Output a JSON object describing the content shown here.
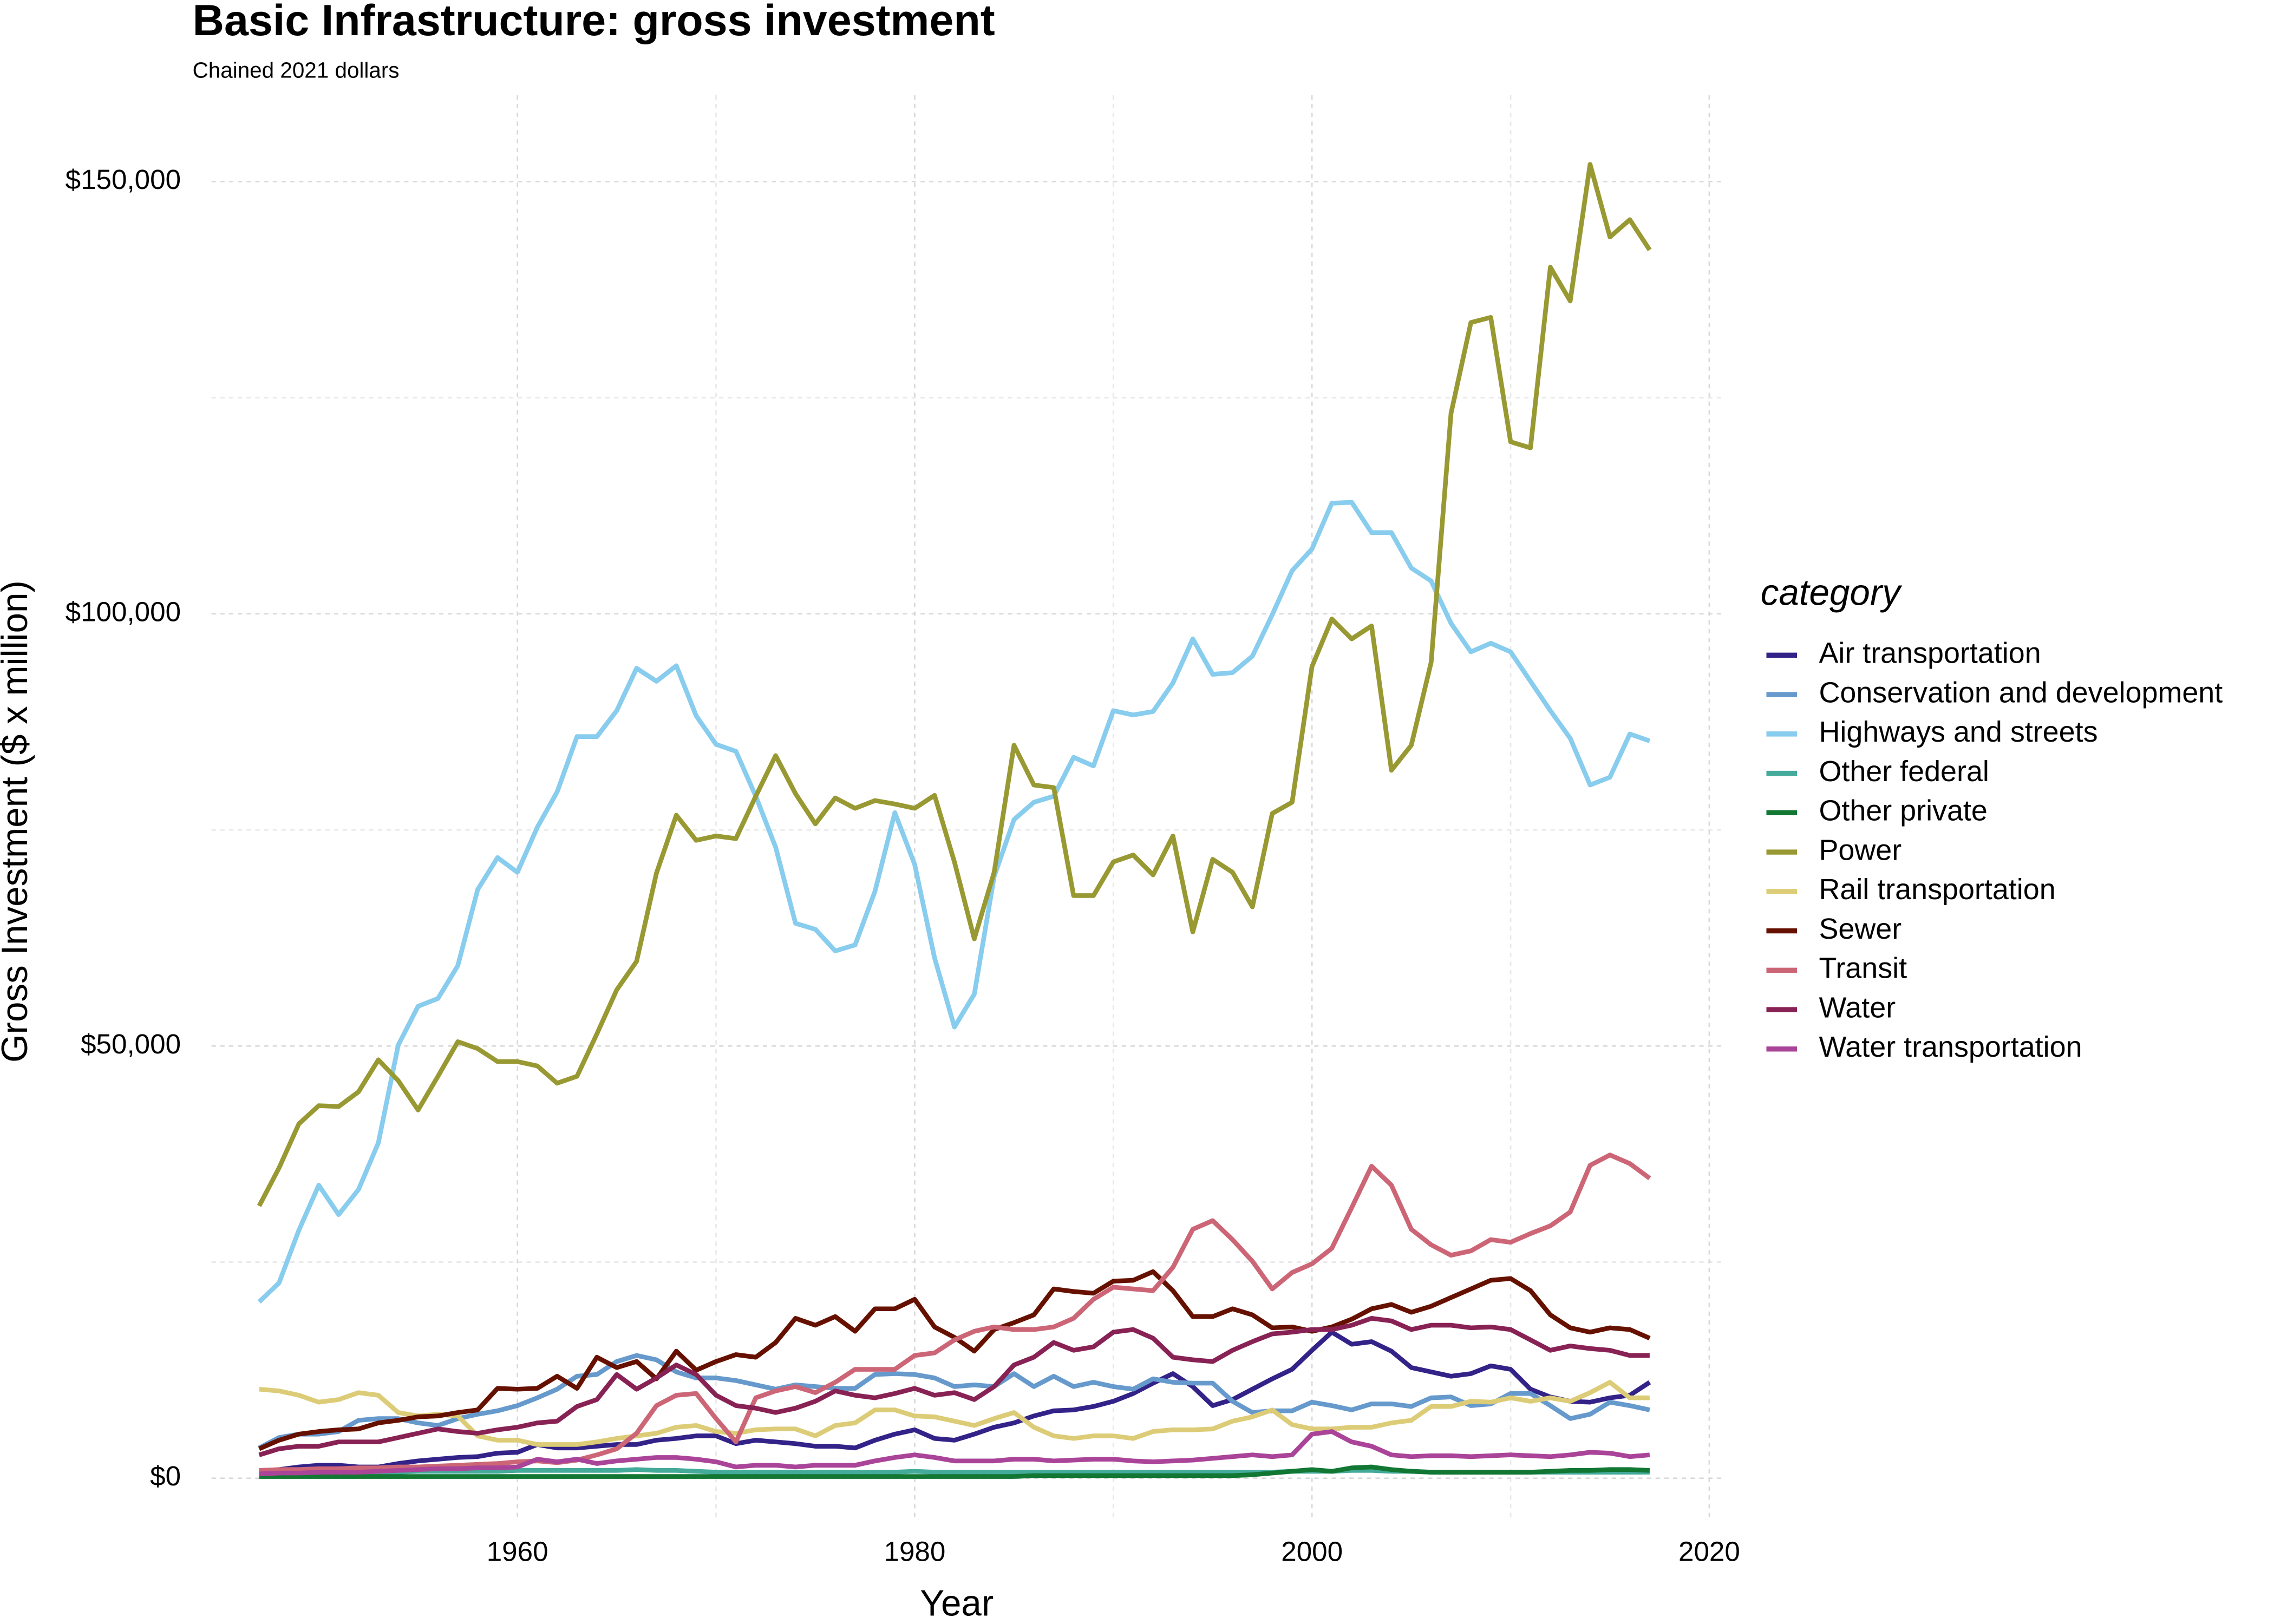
{
  "chart_data": {
    "type": "line",
    "title": "Basic Infrastructure: gross investment",
    "subtitle": "Chained 2021 dollars",
    "x_label": "Year",
    "y_label": "Gross Investment ($ x million)",
    "legend_title": "category",
    "legend_position": "right",
    "grid": true,
    "minor_grid": true,
    "xlim": [
      1944.6,
      2020.6
    ],
    "ylim": [
      -4500,
      160000
    ],
    "xticks": [
      1960,
      1980,
      2000,
      2020
    ],
    "yticks": [
      {
        "value": 0,
        "label": "$0"
      },
      {
        "value": 50000,
        "label": "$50,000"
      },
      {
        "value": 100000,
        "label": "$100,000"
      },
      {
        "value": 150000,
        "label": "$150,000"
      }
    ],
    "x": [
      1947,
      1948,
      1949,
      1950,
      1951,
      1952,
      1953,
      1954,
      1955,
      1956,
      1957,
      1958,
      1959,
      1960,
      1961,
      1962,
      1963,
      1964,
      1965,
      1966,
      1967,
      1968,
      1969,
      1970,
      1971,
      1972,
      1973,
      1974,
      1975,
      1976,
      1977,
      1978,
      1979,
      1980,
      1981,
      1982,
      1983,
      1984,
      1985,
      1986,
      1987,
      1988,
      1989,
      1990,
      1991,
      1992,
      1993,
      1994,
      1995,
      1996,
      1997,
      1998,
      1999,
      2000,
      2001,
      2002,
      2003,
      2004,
      2005,
      2006,
      2007,
      2008,
      2009,
      2010,
      2011,
      2012,
      2013,
      2014,
      2015,
      2016,
      2017
    ],
    "series": [
      {
        "name": "Air transportation",
        "color": "#332288",
        "values": [
          700,
          1000,
          1300,
          1500,
          1500,
          1300,
          1300,
          1700,
          2000,
          2200,
          2400,
          2500,
          2900,
          3000,
          3900,
          3500,
          3500,
          3700,
          3900,
          3900,
          4400,
          4600,
          4900,
          4900,
          4000,
          4400,
          4200,
          4000,
          3700,
          3700,
          3500,
          4400,
          5100,
          5600,
          4600,
          4400,
          5100,
          5900,
          6400,
          7200,
          7800,
          7900,
          8300,
          8900,
          9800,
          11000,
          12100,
          10600,
          8400,
          9100,
          10300,
          11500,
          12600,
          14800,
          16900,
          15500,
          15800,
          14700,
          12800,
          12300,
          11800,
          12100,
          13000,
          12600,
          10300,
          9400,
          8900,
          8800,
          9300,
          9600,
          11100
        ]
      },
      {
        "name": "Conservation and development",
        "color": "#6699cc",
        "values": [
          3500,
          4700,
          5100,
          5100,
          5400,
          6700,
          6900,
          6900,
          6400,
          6100,
          6900,
          7400,
          7800,
          8400,
          9300,
          10300,
          11800,
          12000,
          13500,
          14200,
          13700,
          12300,
          11600,
          11600,
          11300,
          10800,
          10300,
          10800,
          10600,
          10400,
          10400,
          12000,
          12100,
          12000,
          11600,
          10600,
          10800,
          10600,
          12100,
          10600,
          11800,
          10600,
          11100,
          10600,
          10300,
          11500,
          11100,
          11000,
          11000,
          8900,
          7600,
          7800,
          7800,
          8800,
          8400,
          7900,
          8600,
          8600,
          8300,
          9300,
          9400,
          8400,
          8600,
          9800,
          9800,
          8400,
          6900,
          7400,
          8800,
          8400,
          7900
        ]
      },
      {
        "name": "Highways and streets",
        "color": "#88ccee",
        "values": [
          20400,
          22600,
          28700,
          33900,
          30500,
          33400,
          38800,
          50100,
          54600,
          55500,
          59300,
          68100,
          71800,
          70100,
          75300,
          79400,
          85800,
          85800,
          88800,
          93700,
          92200,
          94000,
          88200,
          84900,
          84100,
          78900,
          73000,
          64200,
          63500,
          61000,
          61700,
          67900,
          77000,
          71000,
          60200,
          52200,
          56000,
          69600,
          76200,
          78200,
          78900,
          83400,
          82400,
          88800,
          88300,
          88700,
          92000,
          97100,
          93000,
          93200,
          95100,
          99900,
          105000,
          107500,
          112800,
          112900,
          109400,
          109400,
          105300,
          103800,
          98900,
          95600,
          96600,
          95600,
          92200,
          88800,
          85600,
          80200,
          81100,
          86100,
          85300
        ]
      },
      {
        "name": "Other federal",
        "color": "#44aa99",
        "values": [
          600,
          600,
          700,
          700,
          700,
          700,
          700,
          700,
          800,
          800,
          800,
          800,
          800,
          900,
          900,
          900,
          900,
          900,
          900,
          1000,
          900,
          900,
          800,
          700,
          700,
          700,
          700,
          700,
          700,
          700,
          700,
          700,
          700,
          800,
          700,
          700,
          700,
          700,
          700,
          700,
          700,
          700,
          700,
          700,
          700,
          700,
          700,
          700,
          700,
          700,
          700,
          700,
          800,
          800,
          800,
          900,
          900,
          800,
          800,
          700,
          700,
          700,
          700,
          700,
          700,
          700,
          700,
          700,
          700,
          700,
          700
        ]
      },
      {
        "name": "Other private",
        "color": "#117733",
        "values": [
          200,
          200,
          200,
          200,
          200,
          200,
          200,
          200,
          200,
          200,
          200,
          200,
          200,
          200,
          200,
          200,
          200,
          200,
          200,
          200,
          200,
          200,
          200,
          200,
          200,
          200,
          200,
          200,
          200,
          200,
          200,
          200,
          200,
          200,
          200,
          200,
          200,
          200,
          200,
          300,
          300,
          300,
          300,
          300,
          300,
          300,
          300,
          300,
          300,
          300,
          400,
          600,
          800,
          1000,
          800,
          1200,
          1300,
          1000,
          800,
          700,
          700,
          700,
          700,
          700,
          700,
          800,
          900,
          900,
          1000,
          1000,
          900
        ]
      },
      {
        "name": "Power",
        "color": "#999933",
        "values": [
          31500,
          35900,
          41000,
          43100,
          43000,
          44700,
          48400,
          46000,
          42600,
          46500,
          50500,
          49700,
          48200,
          48200,
          47700,
          45700,
          46500,
          51400,
          56500,
          59800,
          70000,
          76700,
          73800,
          74300,
          74000,
          78900,
          83600,
          79200,
          75700,
          78700,
          77500,
          78400,
          78000,
          77500,
          79000,
          71300,
          62400,
          70100,
          84800,
          80200,
          79900,
          67400,
          67400,
          71300,
          72100,
          69800,
          74300,
          63200,
          71600,
          70100,
          66100,
          76900,
          78200,
          93900,
          99400,
          97100,
          98600,
          81900,
          84800,
          94400,
          123200,
          133700,
          134300,
          119900,
          119200,
          140100,
          136200,
          152000,
          143600,
          145600,
          142100
        ]
      },
      {
        "name": "Rail transportation",
        "color": "#ddcc77",
        "values": [
          10300,
          10100,
          9600,
          8800,
          9100,
          9900,
          9600,
          7600,
          7200,
          7400,
          7200,
          4900,
          4400,
          4400,
          3900,
          3900,
          3900,
          4200,
          4600,
          4900,
          5200,
          5900,
          6100,
          5400,
          5200,
          5600,
          5700,
          5700,
          4900,
          6100,
          6400,
          7900,
          7900,
          7200,
          7100,
          6600,
          6100,
          6900,
          7600,
          5900,
          4900,
          4600,
          4900,
          4900,
          4600,
          5400,
          5600,
          5600,
          5700,
          6600,
          7100,
          7900,
          6200,
          5700,
          5700,
          5900,
          5900,
          6400,
          6700,
          8300,
          8300,
          8900,
          8800,
          9300,
          8900,
          9300,
          8900,
          9900,
          11100,
          9300,
          9300
        ]
      },
      {
        "name": "Sewer",
        "color": "#661100",
        "values": [
          3400,
          4400,
          5100,
          5400,
          5600,
          5700,
          6400,
          6700,
          7100,
          7200,
          7600,
          7900,
          10400,
          10300,
          10400,
          11800,
          10400,
          14000,
          12800,
          13500,
          11500,
          14700,
          12500,
          13500,
          14300,
          14000,
          15700,
          18500,
          17700,
          18700,
          17000,
          19600,
          19600,
          20700,
          17500,
          16300,
          14700,
          17200,
          18000,
          18900,
          21900,
          21600,
          21400,
          22800,
          22900,
          23900,
          21700,
          18700,
          18700,
          19600,
          18900,
          17400,
          17500,
          17000,
          17500,
          18400,
          19600,
          20100,
          19200,
          19900,
          20900,
          21900,
          22900,
          23100,
          21700,
          18900,
          17400,
          16900,
          17400,
          17200,
          16200
        ]
      },
      {
        "name": "Transit",
        "color": "#cc6677",
        "values": [
          900,
          1000,
          1000,
          1100,
          1100,
          1200,
          1200,
          1300,
          1300,
          1400,
          1500,
          1600,
          1700,
          1900,
          2000,
          1800,
          2100,
          2700,
          3400,
          5200,
          8400,
          9600,
          9800,
          6900,
          4200,
          9300,
          10100,
          10600,
          9900,
          11100,
          12600,
          12600,
          12600,
          14200,
          14500,
          16000,
          17000,
          17500,
          17200,
          17200,
          17500,
          18500,
          20700,
          22100,
          21900,
          21700,
          24400,
          28800,
          29800,
          27600,
          25100,
          21900,
          23800,
          24800,
          26600,
          31300,
          36100,
          33900,
          28800,
          27000,
          25800,
          26300,
          27600,
          27300,
          28300,
          29200,
          30800,
          36200,
          37400,
          36400,
          34700
        ]
      },
      {
        "name": "Water",
        "color": "#882255",
        "values": [
          2700,
          3400,
          3700,
          3700,
          4200,
          4200,
          4200,
          4700,
          5200,
          5700,
          5400,
          5200,
          5600,
          5900,
          6400,
          6600,
          8300,
          9100,
          12000,
          10300,
          11600,
          13100,
          12000,
          9600,
          8400,
          8100,
          7600,
          8100,
          8900,
          10100,
          9600,
          9300,
          9800,
          10400,
          9600,
          9900,
          9100,
          10600,
          13100,
          14000,
          15700,
          14800,
          15200,
          16900,
          17200,
          16200,
          14000,
          13700,
          13500,
          14800,
          15800,
          16700,
          16900,
          17200,
          17200,
          17700,
          18500,
          18200,
          17200,
          17700,
          17700,
          17400,
          17500,
          17200,
          16000,
          14800,
          15300,
          15000,
          14800,
          14200,
          14200
        ]
      },
      {
        "name": "Water transportation",
        "color": "#aa4499",
        "values": [
          500,
          600,
          600,
          700,
          700,
          700,
          800,
          900,
          1000,
          1100,
          1100,
          1200,
          1200,
          1300,
          2200,
          1900,
          2200,
          1700,
          2000,
          2200,
          2400,
          2400,
          2200,
          1900,
          1300,
          1500,
          1500,
          1300,
          1500,
          1500,
          1500,
          2000,
          2400,
          2700,
          2400,
          2000,
          2000,
          2000,
          2200,
          2200,
          2000,
          2100,
          2200,
          2200,
          2000,
          1900,
          2000,
          2100,
          2300,
          2500,
          2700,
          2500,
          2700,
          5100,
          5400,
          4200,
          3700,
          2700,
          2500,
          2600,
          2600,
          2500,
          2600,
          2700,
          2600,
          2500,
          2700,
          3000,
          2900,
          2500,
          2700
        ]
      }
    ]
  }
}
